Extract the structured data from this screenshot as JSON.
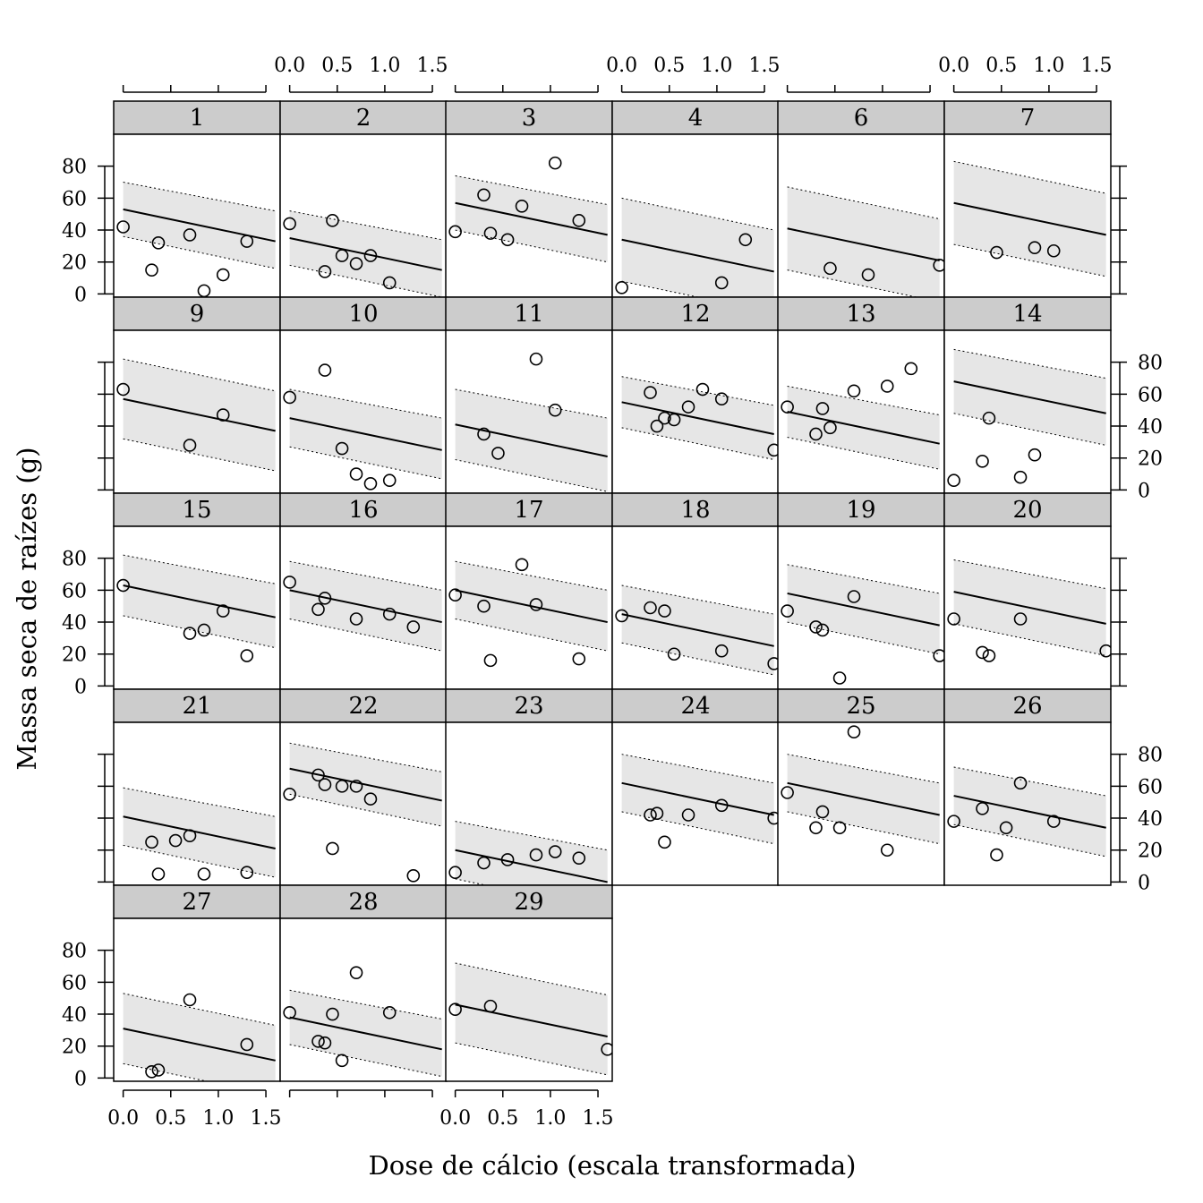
{
  "chart_data": {
    "type": "scatter",
    "layout": "lattice-panels",
    "xlabel": "Dose de cálcio (escala transformada)",
    "ylabel": "Massa seca de raízes (g)",
    "xlim": [
      -0.1,
      1.65
    ],
    "ylim": [
      -2,
      100
    ],
    "x_ticks": [
      0.0,
      0.5,
      1.0,
      1.5
    ],
    "x_tick_labels": [
      "0.0",
      "0.5",
      "1.0",
      "1.5"
    ],
    "y_ticks": [
      0,
      20,
      40,
      60,
      80
    ],
    "y_tick_labels": [
      "0",
      "20",
      "40",
      "60",
      "80"
    ],
    "band_half_width": 17,
    "colors": {
      "strip": "#cccccc",
      "band": "#e6e6e6",
      "line": "#000000",
      "points": "#000000"
    },
    "panels": [
      {
        "label": "1",
        "fit": [
          53,
          33
        ],
        "band": [
          [
            70,
            52
          ],
          [
            36,
            16
          ]
        ],
        "points": [
          [
            0,
            42
          ],
          [
            0.3,
            15
          ],
          [
            0.37,
            32
          ],
          [
            0.7,
            37
          ],
          [
            0.85,
            2
          ],
          [
            1.05,
            12
          ],
          [
            1.3,
            33
          ]
        ]
      },
      {
        "label": "2",
        "fit": [
          35,
          15
        ],
        "band": [
          [
            52,
            34
          ],
          [
            18,
            -2
          ]
        ],
        "points": [
          [
            0,
            44
          ],
          [
            0.37,
            14
          ],
          [
            0.45,
            46
          ],
          [
            0.55,
            24
          ],
          [
            0.7,
            19
          ],
          [
            0.85,
            24
          ],
          [
            1.05,
            7
          ]
        ]
      },
      {
        "label": "3",
        "fit": [
          57,
          37
        ],
        "band": [
          [
            74,
            56
          ],
          [
            40,
            20
          ]
        ],
        "points": [
          [
            0,
            39
          ],
          [
            0.3,
            62
          ],
          [
            0.37,
            38
          ],
          [
            0.55,
            34
          ],
          [
            0.7,
            55
          ],
          [
            1.05,
            82
          ],
          [
            1.3,
            46
          ]
        ]
      },
      {
        "label": "4",
        "fit": [
          34,
          14
        ],
        "band": [
          [
            60,
            40
          ],
          [
            8,
            -12
          ]
        ],
        "points": [
          [
            0,
            4
          ],
          [
            1.05,
            7
          ],
          [
            1.3,
            34
          ]
        ]
      },
      {
        "label": "6",
        "fit": [
          41,
          21
        ],
        "band": [
          [
            67,
            47
          ],
          [
            15,
            -5
          ]
        ],
        "points": [
          [
            0.45,
            16
          ],
          [
            0.85,
            12
          ],
          [
            1.6,
            18
          ]
        ]
      },
      {
        "label": "7",
        "fit": [
          57,
          37
        ],
        "band": [
          [
            83,
            63
          ],
          [
            31,
            11
          ]
        ],
        "points": [
          [
            0.45,
            26
          ],
          [
            0.85,
            29
          ],
          [
            1.05,
            27
          ]
        ]
      },
      {
        "label": "9",
        "fit": [
          57,
          37
        ],
        "band": [
          [
            82,
            62
          ],
          [
            32,
            12
          ]
        ],
        "points": [
          [
            0,
            63
          ],
          [
            0.7,
            28
          ],
          [
            1.05,
            47
          ]
        ]
      },
      {
        "label": "10",
        "fit": [
          45,
          25
        ],
        "band": [
          [
            63,
            45
          ],
          [
            27,
            7
          ]
        ],
        "points": [
          [
            0,
            58
          ],
          [
            0.37,
            75
          ],
          [
            0.55,
            26
          ],
          [
            0.7,
            10
          ],
          [
            0.85,
            4
          ],
          [
            1.05,
            6
          ]
        ]
      },
      {
        "label": "11",
        "fit": [
          41,
          21
        ],
        "band": [
          [
            63,
            45
          ],
          [
            19,
            -1
          ]
        ],
        "points": [
          [
            0.3,
            35
          ],
          [
            0.45,
            23
          ],
          [
            0.85,
            82
          ],
          [
            1.05,
            50
          ]
        ]
      },
      {
        "label": "12",
        "fit": [
          55,
          35
        ],
        "band": [
          [
            71,
            53
          ],
          [
            39,
            19
          ]
        ],
        "points": [
          [
            0.3,
            61
          ],
          [
            0.37,
            40
          ],
          [
            0.45,
            45
          ],
          [
            0.55,
            44
          ],
          [
            0.7,
            52
          ],
          [
            0.85,
            63
          ],
          [
            1.05,
            57
          ],
          [
            1.6,
            25
          ]
        ]
      },
      {
        "label": "13",
        "fit": [
          49,
          29
        ],
        "band": [
          [
            65,
            47
          ],
          [
            33,
            13
          ]
        ],
        "points": [
          [
            0,
            52
          ],
          [
            0.3,
            35
          ],
          [
            0.37,
            51
          ],
          [
            0.45,
            39
          ],
          [
            0.7,
            62
          ],
          [
            1.05,
            65
          ],
          [
            1.3,
            76
          ]
        ]
      },
      {
        "label": "14",
        "fit": [
          68,
          48
        ],
        "band": [
          [
            88,
            70
          ],
          [
            48,
            28
          ]
        ],
        "points": [
          [
            0,
            6
          ],
          [
            0.3,
            18
          ],
          [
            0.37,
            45
          ],
          [
            0.7,
            8
          ],
          [
            0.85,
            22
          ]
        ]
      },
      {
        "label": "15",
        "fit": [
          63,
          43
        ],
        "band": [
          [
            82,
            64
          ],
          [
            44,
            24
          ]
        ],
        "points": [
          [
            0,
            63
          ],
          [
            0.7,
            33
          ],
          [
            0.85,
            35
          ],
          [
            1.05,
            47
          ],
          [
            1.3,
            19
          ]
        ]
      },
      {
        "label": "16",
        "fit": [
          60,
          40
        ],
        "band": [
          [
            78,
            60
          ],
          [
            42,
            22
          ]
        ],
        "points": [
          [
            0,
            65
          ],
          [
            0.3,
            48
          ],
          [
            0.37,
            55
          ],
          [
            0.7,
            42
          ],
          [
            1.05,
            45
          ],
          [
            1.3,
            37
          ]
        ]
      },
      {
        "label": "17",
        "fit": [
          60,
          40
        ],
        "band": [
          [
            78,
            60
          ],
          [
            42,
            22
          ]
        ],
        "points": [
          [
            0,
            57
          ],
          [
            0.3,
            50
          ],
          [
            0.37,
            16
          ],
          [
            0.7,
            76
          ],
          [
            0.85,
            51
          ],
          [
            1.3,
            17
          ]
        ]
      },
      {
        "label": "18",
        "fit": [
          45,
          25
        ],
        "band": [
          [
            63,
            45
          ],
          [
            27,
            7
          ]
        ],
        "points": [
          [
            0,
            44
          ],
          [
            0.3,
            49
          ],
          [
            0.45,
            47
          ],
          [
            0.55,
            20
          ],
          [
            1.05,
            22
          ],
          [
            1.6,
            14
          ]
        ]
      },
      {
        "label": "19",
        "fit": [
          58,
          38
        ],
        "band": [
          [
            76,
            58
          ],
          [
            40,
            20
          ]
        ],
        "points": [
          [
            0,
            47
          ],
          [
            0.3,
            37
          ],
          [
            0.37,
            35
          ],
          [
            0.55,
            5
          ],
          [
            0.7,
            56
          ],
          [
            1.6,
            19
          ]
        ]
      },
      {
        "label": "20",
        "fit": [
          59,
          39
        ],
        "band": [
          [
            79,
            61
          ],
          [
            39,
            19
          ]
        ],
        "points": [
          [
            0,
            42
          ],
          [
            0.3,
            21
          ],
          [
            0.37,
            19
          ],
          [
            0.7,
            42
          ],
          [
            1.6,
            22
          ]
        ]
      },
      {
        "label": "21",
        "fit": [
          41,
          21
        ],
        "band": [
          [
            59,
            41
          ],
          [
            23,
            3
          ]
        ],
        "points": [
          [
            0.3,
            25
          ],
          [
            0.37,
            5
          ],
          [
            0.55,
            26
          ],
          [
            0.7,
            29
          ],
          [
            0.85,
            5
          ],
          [
            1.3,
            6
          ]
        ]
      },
      {
        "label": "22",
        "fit": [
          71,
          51
        ],
        "band": [
          [
            87,
            69
          ],
          [
            55,
            35
          ]
        ],
        "points": [
          [
            0,
            55
          ],
          [
            0.3,
            67
          ],
          [
            0.37,
            61
          ],
          [
            0.45,
            21
          ],
          [
            0.55,
            60
          ],
          [
            0.7,
            60
          ],
          [
            0.85,
            52
          ],
          [
            1.3,
            4
          ]
        ]
      },
      {
        "label": "23",
        "fit": [
          20,
          0
        ],
        "band": [
          [
            38,
            20
          ],
          [
            2,
            -18
          ]
        ],
        "points": [
          [
            0,
            6
          ],
          [
            0.3,
            12
          ],
          [
            0.55,
            14
          ],
          [
            0.85,
            17
          ],
          [
            1.05,
            19
          ],
          [
            1.3,
            15
          ]
        ]
      },
      {
        "label": "24",
        "fit": [
          62,
          42
        ],
        "band": [
          [
            80,
            62
          ],
          [
            44,
            24
          ]
        ],
        "points": [
          [
            0.3,
            42
          ],
          [
            0.37,
            43
          ],
          [
            0.45,
            25
          ],
          [
            0.7,
            42
          ],
          [
            1.05,
            48
          ],
          [
            1.6,
            40
          ]
        ]
      },
      {
        "label": "25",
        "fit": [
          62,
          42
        ],
        "band": [
          [
            80,
            62
          ],
          [
            44,
            24
          ]
        ],
        "points": [
          [
            0,
            56
          ],
          [
            0.37,
            44
          ],
          [
            0.3,
            34
          ],
          [
            0.55,
            34
          ],
          [
            0.7,
            94
          ],
          [
            1.05,
            20
          ]
        ]
      },
      {
        "label": "26",
        "fit": [
          54,
          34
        ],
        "band": [
          [
            72,
            54
          ],
          [
            36,
            16
          ]
        ],
        "points": [
          [
            0,
            38
          ],
          [
            0.3,
            46
          ],
          [
            0.45,
            17
          ],
          [
            0.55,
            34
          ],
          [
            0.7,
            62
          ],
          [
            1.05,
            38
          ]
        ]
      },
      {
        "label": "27",
        "fit": [
          31,
          11
        ],
        "band": [
          [
            53,
            33
          ],
          [
            9,
            -11
          ]
        ],
        "points": [
          [
            0.3,
            4
          ],
          [
            0.37,
            5
          ],
          [
            0.7,
            49
          ],
          [
            1.3,
            21
          ]
        ]
      },
      {
        "label": "28",
        "fit": [
          38,
          18
        ],
        "band": [
          [
            55,
            37
          ],
          [
            21,
            1
          ]
        ],
        "points": [
          [
            0,
            41
          ],
          [
            0.3,
            23
          ],
          [
            0.37,
            22
          ],
          [
            0.45,
            40
          ],
          [
            0.55,
            11
          ],
          [
            0.7,
            66
          ],
          [
            1.05,
            41
          ]
        ]
      },
      {
        "label": "29",
        "fit": [
          46,
          26
        ],
        "band": [
          [
            72,
            52
          ],
          [
            22,
            2
          ]
        ],
        "points": [
          [
            0,
            43
          ],
          [
            0.37,
            45
          ],
          [
            1.6,
            18
          ]
        ]
      }
    ]
  }
}
